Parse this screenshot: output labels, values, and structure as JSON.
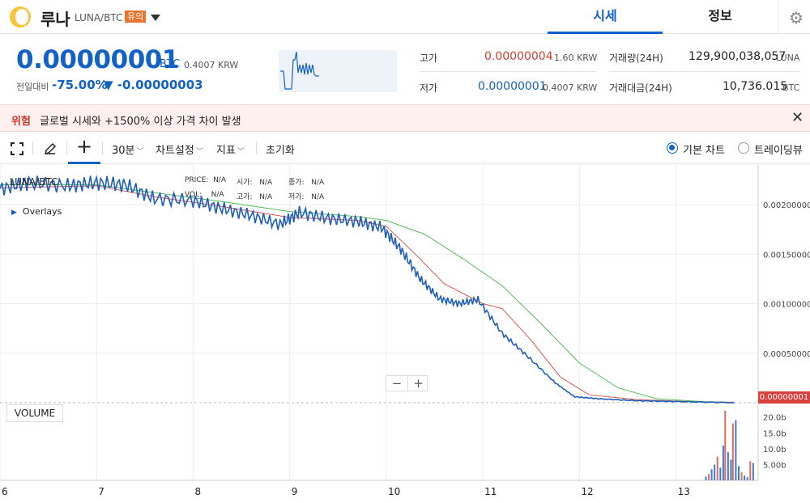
{
  "header": {
    "coin_name": "루나",
    "pair": "LUNA/BTC",
    "warning_badge": "유의",
    "tabs": [
      {
        "label": "시세",
        "active": true
      },
      {
        "label": "정보",
        "active": false
      }
    ]
  },
  "price": {
    "current": "0.00000001",
    "unit": "BTC",
    "krw": "0.4007",
    "krw_unit": "KRW",
    "change_label": "전일대비",
    "change_pct": "-75.00%",
    "change_abs": "▼ -0.00000003"
  },
  "stats": {
    "high_label": "고가",
    "high_value": "0.00000004",
    "high_krw": "1.60",
    "high_krw_unit": "KRW",
    "low_label": "저가",
    "low_value": "0.00000001",
    "low_krw": "0.4007",
    "low_krw_unit": "KRW",
    "volume_label": "거래량(24H)",
    "volume_value": "129,900,038,057",
    "volume_unit": "LUNA",
    "amount_label": "거래대금(24H)",
    "amount_value": "10,736.015",
    "amount_unit": "BTC"
  },
  "alert": {
    "tag": "위험",
    "text": "글로벌 시세와 +1500% 이상 가격 차이 발생"
  },
  "toolbar": {
    "interval": "30분",
    "chart_settings": "차트설정",
    "indicators": "지표",
    "reset": "초기화",
    "basic_chart": "기본 차트",
    "trading_view": "트레이딩뷰"
  },
  "chart": {
    "legend_pair": "LUNA/BTC",
    "overlays": "Overlays",
    "ohlc": {
      "price_label": "PRICE:",
      "price": "N/A",
      "open_label": "시가:",
      "open": "N/A",
      "close_label": "종가:",
      "close": "N/A",
      "vol_label": "VOL:",
      "vol": "N/A",
      "high_label": "고가:",
      "high": "N/A",
      "low_label": "저가:",
      "low": "N/A"
    },
    "zoom_out": "−",
    "zoom_in": "+",
    "volume_label": "VOLUME",
    "last_price_flag": "0.00000001"
  },
  "chart_data": {
    "type": "line",
    "x_ticks": [
      "6",
      "7",
      "8",
      "9",
      "10",
      "11",
      "12",
      "13"
    ],
    "y_ticks": [
      "0.00200000",
      "0.00150000",
      "0.00100000",
      "0.00050000"
    ],
    "volume_ticks": [
      "20.0b",
      "15.0b",
      "10.0b",
      "5.00b"
    ],
    "price_series": [
      [
        6.0,
        0.00216
      ],
      [
        6.3,
        0.00222
      ],
      [
        6.7,
        0.00219
      ],
      [
        7.0,
        0.00222
      ],
      [
        7.3,
        0.0022
      ],
      [
        7.6,
        0.00206
      ],
      [
        8.0,
        0.00204
      ],
      [
        8.3,
        0.00196
      ],
      [
        8.6,
        0.00189
      ],
      [
        8.9,
        0.0018
      ],
      [
        9.1,
        0.00192
      ],
      [
        9.4,
        0.00186
      ],
      [
        9.7,
        0.00183
      ],
      [
        9.95,
        0.00177
      ],
      [
        10.15,
        0.00155
      ],
      [
        10.35,
        0.00125
      ],
      [
        10.55,
        0.00105
      ],
      [
        10.75,
        0.001
      ],
      [
        10.95,
        0.00104
      ],
      [
        11.2,
        0.0007
      ],
      [
        11.45,
        0.00048
      ],
      [
        11.75,
        0.0002
      ],
      [
        11.95,
        6e-05
      ],
      [
        12.2,
        4e-05
      ],
      [
        12.6,
        2e-05
      ],
      [
        13.0,
        1.2e-05
      ],
      [
        13.6,
        1e-08
      ]
    ],
    "ma_short": [
      [
        6.0,
        0.00217
      ],
      [
        7.0,
        0.00219
      ],
      [
        7.6,
        0.00208
      ],
      [
        8.3,
        0.00198
      ],
      [
        9.0,
        0.00187
      ],
      [
        9.7,
        0.00184
      ],
      [
        10.0,
        0.00178
      ],
      [
        10.3,
        0.0015
      ],
      [
        10.6,
        0.0012
      ],
      [
        11.0,
        0.001
      ],
      [
        11.2,
        0.00095
      ],
      [
        11.5,
        0.00063
      ],
      [
        11.8,
        0.00026
      ],
      [
        12.1,
        8e-05
      ],
      [
        12.6,
        3e-05
      ],
      [
        13.2,
        1e-05
      ],
      [
        13.6,
        5e-06
      ]
    ],
    "ma_long": [
      [
        6.0,
        0.0022
      ],
      [
        7.0,
        0.0022
      ],
      [
        7.6,
        0.00212
      ],
      [
        8.3,
        0.00203
      ],
      [
        9.0,
        0.00193
      ],
      [
        9.7,
        0.00188
      ],
      [
        10.0,
        0.00184
      ],
      [
        10.4,
        0.0017
      ],
      [
        10.8,
        0.00145
      ],
      [
        11.2,
        0.00118
      ],
      [
        11.6,
        0.0008
      ],
      [
        12.0,
        0.0004
      ],
      [
        12.4,
        0.00015
      ],
      [
        12.8,
        4e-05
      ],
      [
        13.3,
        1e-05
      ],
      [
        13.6,
        3e-06
      ]
    ],
    "volume_bars": [
      [
        13.3,
        1.2
      ],
      [
        13.33,
        2.0
      ],
      [
        13.36,
        3.5
      ],
      [
        13.39,
        5.0
      ],
      [
        13.42,
        7.5
      ],
      [
        13.45,
        4.0
      ],
      [
        13.48,
        11.0
      ],
      [
        13.5,
        22.0
      ],
      [
        13.53,
        9.0
      ],
      [
        13.56,
        6.5
      ],
      [
        13.58,
        18.0
      ],
      [
        13.61,
        19.0
      ],
      [
        13.64,
        4.5
      ],
      [
        13.67,
        2.5
      ],
      [
        13.7,
        1.5
      ],
      [
        13.73,
        1.0
      ],
      [
        13.76,
        6.0
      ],
      [
        13.79,
        5.5
      ]
    ],
    "ylim": [
      0,
      0.0024
    ],
    "xlim": [
      6.0,
      13.85
    ],
    "grid": true
  }
}
